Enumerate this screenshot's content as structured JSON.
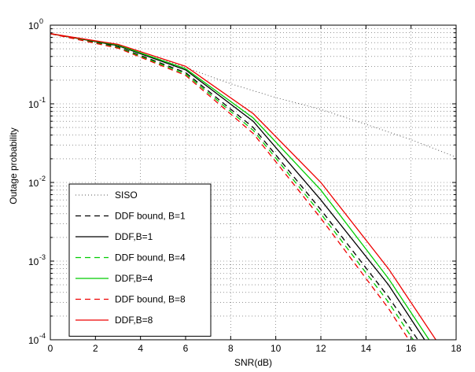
{
  "chart_data": {
    "type": "line",
    "title": "",
    "xlabel": "SNR(dB)",
    "ylabel": "Outage probability",
    "xlim": [
      0,
      18
    ],
    "ylim": [
      0.0001,
      1
    ],
    "yscale": "log",
    "grid": true,
    "legend_position": "bottom-left",
    "xticks": [
      "0",
      "2",
      "4",
      "6",
      "8",
      "10",
      "12",
      "14",
      "16",
      "18"
    ],
    "ytick_bases": [
      "10",
      "10",
      "10",
      "10",
      "10"
    ],
    "ytick_exponents": [
      "-4",
      "-3",
      "-2",
      "-1",
      "0"
    ],
    "series": [
      {
        "name": "SISO",
        "color": "#555555",
        "style": "dotted",
        "x": [
          0,
          2,
          4,
          6,
          8,
          10,
          12,
          14,
          16,
          18
        ],
        "y": [
          0.78,
          0.63,
          0.46,
          0.29,
          0.18,
          0.12,
          0.085,
          0.055,
          0.035,
          0.021
        ]
      },
      {
        "name": "DDF bound, B=1",
        "color": "#000000",
        "style": "dashed",
        "x": [
          0,
          3,
          6,
          9,
          12,
          15,
          16.3
        ],
        "y": [
          0.78,
          0.53,
          0.25,
          0.05,
          0.0045,
          0.00035,
          0.0001
        ]
      },
      {
        "name": "DDF,B=1",
        "color": "#000000",
        "style": "solid",
        "x": [
          0,
          3,
          6,
          9,
          12,
          15,
          16.6
        ],
        "y": [
          0.78,
          0.55,
          0.27,
          0.06,
          0.006,
          0.0005,
          0.0001
        ]
      },
      {
        "name": "DDF bound, B=4",
        "color": "#00cc00",
        "style": "dashed",
        "x": [
          0,
          3,
          6,
          9,
          12,
          15,
          16.1
        ],
        "y": [
          0.78,
          0.52,
          0.24,
          0.046,
          0.004,
          0.0003,
          0.0001
        ]
      },
      {
        "name": "DDF,B=4",
        "color": "#00cc00",
        "style": "solid",
        "x": [
          0,
          3,
          6,
          9,
          12,
          15,
          16.8
        ],
        "y": [
          0.78,
          0.56,
          0.28,
          0.066,
          0.008,
          0.0006,
          0.0001
        ]
      },
      {
        "name": "DDF bound, B=8",
        "color": "#ee0000",
        "style": "dashed",
        "x": [
          0,
          3,
          6,
          9,
          12,
          15,
          15.9
        ],
        "y": [
          0.78,
          0.51,
          0.23,
          0.042,
          0.0035,
          0.00025,
          0.0001
        ]
      },
      {
        "name": "DDF,B=8",
        "color": "#ee0000",
        "style": "solid",
        "x": [
          0,
          3,
          6,
          9,
          12,
          15,
          17.1
        ],
        "y": [
          0.78,
          0.57,
          0.3,
          0.075,
          0.01,
          0.0008,
          0.0001
        ]
      }
    ]
  }
}
